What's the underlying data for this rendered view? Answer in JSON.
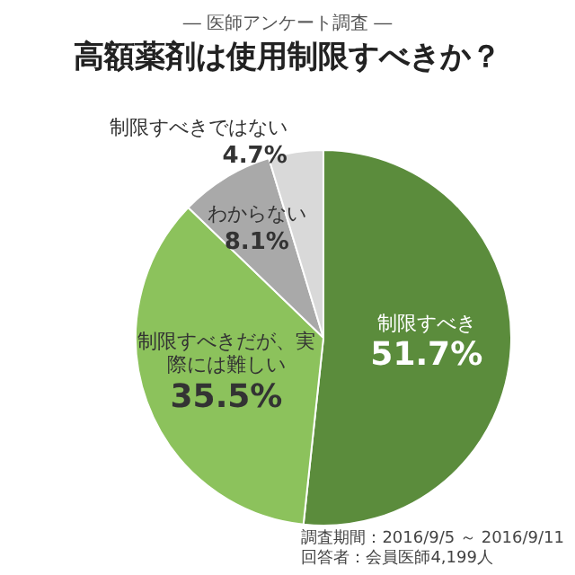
{
  "chart_data": {
    "type": "pie",
    "title": "高額薬剤は使用制限すべきか？",
    "subtitle": "― 医師アンケート調査 ―",
    "categories": [
      "制限すべき",
      "制限すべきだが、実際には難しい",
      "わからない",
      "制限すべきではない"
    ],
    "values": [
      51.7,
      35.5,
      8.1,
      4.7
    ],
    "colors": [
      "#5b8c3c",
      "#8cc25c",
      "#a9a9a9",
      "#d9d9d9"
    ],
    "value_labels": [
      "51.7%",
      "35.5%",
      "8.1%",
      "4.7%"
    ],
    "legend": false,
    "annotations": [
      "調査期間：2016/9/5 ～ 2016/9/11",
      "回答者：会員医師4,199人"
    ]
  }
}
